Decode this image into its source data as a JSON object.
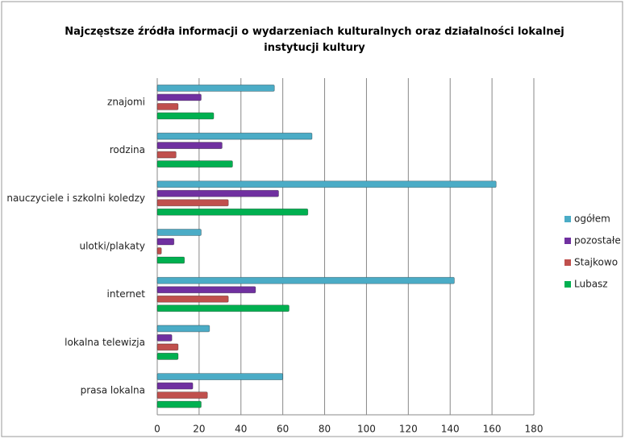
{
  "chart_data": {
    "type": "hbar",
    "title": "Najczęstsze źródła informacji o wydarzeniach kulturalnych oraz działalności lokalnej instytucji kultury",
    "categories": [
      "znajomi",
      "rodzina",
      "nauczyciele i szkolni koledzy",
      "ulotki/plakaty",
      "internet",
      "lokalna telewizja",
      "prasa lokalna"
    ],
    "series": [
      {
        "name": "ogółem",
        "color": "#4bacc6",
        "values": [
          56,
          74,
          162,
          21,
          142,
          25,
          60
        ]
      },
      {
        "name": "pozostałe",
        "color": "#7030a0",
        "values": [
          21,
          31,
          58,
          8,
          47,
          7,
          17
        ]
      },
      {
        "name": "Stajkowo",
        "color": "#c0504d",
        "values": [
          10,
          9,
          34,
          2,
          34,
          10,
          24
        ]
      },
      {
        "name": "Lubasz",
        "color": "#00b050",
        "values": [
          27,
          36,
          72,
          13,
          63,
          10,
          21
        ]
      }
    ],
    "xlim": [
      0,
      180
    ],
    "xticks": [
      0,
      20,
      40,
      60,
      80,
      100,
      120,
      140,
      160,
      180
    ],
    "grid": true,
    "legend": "right"
  }
}
